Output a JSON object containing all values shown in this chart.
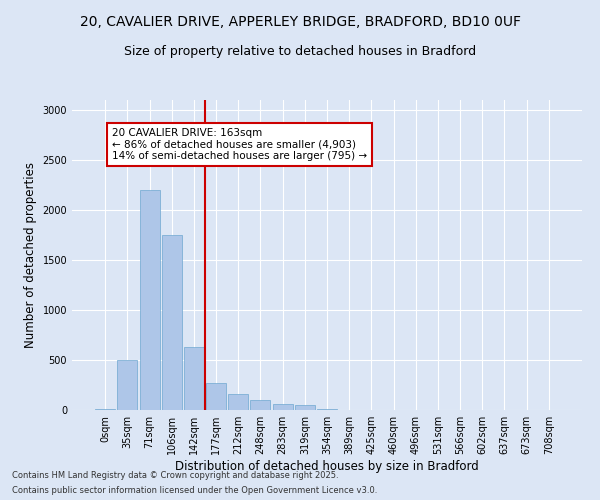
{
  "title_line1": "20, CAVALIER DRIVE, APPERLEY BRIDGE, BRADFORD, BD10 0UF",
  "title_line2": "Size of property relative to detached houses in Bradford",
  "xlabel": "Distribution of detached houses by size in Bradford",
  "ylabel": "Number of detached properties",
  "categories": [
    "0sqm",
    "35sqm",
    "71sqm",
    "106sqm",
    "142sqm",
    "177sqm",
    "212sqm",
    "248sqm",
    "283sqm",
    "319sqm",
    "354sqm",
    "389sqm",
    "425sqm",
    "460sqm",
    "496sqm",
    "531sqm",
    "566sqm",
    "602sqm",
    "637sqm",
    "673sqm",
    "708sqm"
  ],
  "values": [
    10,
    500,
    2200,
    1750,
    635,
    270,
    160,
    100,
    65,
    50,
    10,
    5,
    5,
    5,
    5,
    2,
    0,
    0,
    0,
    0,
    0
  ],
  "bar_color": "#aec6e8",
  "bar_edge_color": "#6fa8d0",
  "vline_x": 4.5,
  "vline_color": "#cc0000",
  "annotation_text": "20 CAVALIER DRIVE: 163sqm\n← 86% of detached houses are smaller (4,903)\n14% of semi-detached houses are larger (795) →",
  "annotation_box_color": "#ffffff",
  "annotation_box_edge_color": "#cc0000",
  "bg_color": "#dce6f5",
  "plot_bg_color": "#dce6f5",
  "ylim": [
    0,
    3100
  ],
  "footer_line1": "Contains HM Land Registry data © Crown copyright and database right 2025.",
  "footer_line2": "Contains public sector information licensed under the Open Government Licence v3.0.",
  "title_fontsize": 10,
  "subtitle_fontsize": 9,
  "axis_label_fontsize": 8.5,
  "tick_fontsize": 7,
  "annotation_fontsize": 7.5,
  "footer_fontsize": 6
}
